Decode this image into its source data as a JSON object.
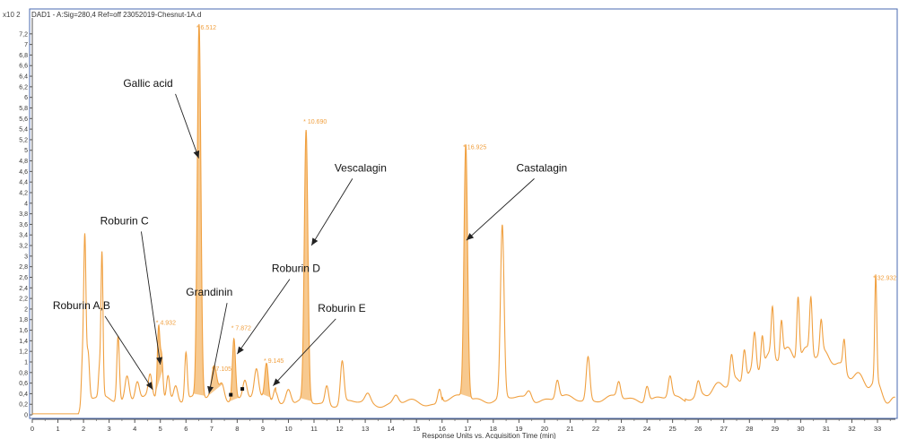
{
  "chart_data": {
    "type": "line",
    "title": "DAD1 - A:Sig=280,4  Ref=off 23052019-Chesnut-1A.d",
    "xlabel": "Response Units vs. Acquisition Time (min)",
    "ylabel": "",
    "y_scale_label": "x10 2",
    "xlim": [
      0,
      33.7
    ],
    "ylim": [
      -0.05,
      7.4
    ],
    "x_ticks": [
      "0",
      "1",
      "2",
      "3",
      "4",
      "5",
      "6",
      "7",
      "8",
      "9",
      "10",
      "11",
      "12",
      "13",
      "14",
      "15",
      "16",
      "17",
      "18",
      "19",
      "20",
      "21",
      "22",
      "23",
      "24",
      "25",
      "26",
      "27",
      "28",
      "29",
      "30",
      "31",
      "32",
      "33"
    ],
    "y_ticks": [
      "0",
      "0,2",
      "0,4",
      "0,6",
      "0,8",
      "1",
      "1,2",
      "1,4",
      "1,6",
      "1,8",
      "2",
      "2,2",
      "2,4",
      "2,6",
      "2,8",
      "3",
      "3,2",
      "3,4",
      "3,6",
      "3,8",
      "4",
      "4,2",
      "4,4",
      "4,6",
      "4,8",
      "5",
      "5,2",
      "5,4",
      "5,6",
      "5,8",
      "6",
      "6,2",
      "6,4",
      "6,6",
      "6,8",
      "7",
      "7,2"
    ],
    "line_color": "#f0a040",
    "fill_color": "#f7c98f",
    "baseline": 0.02,
    "peaks": [
      {
        "x": 1.95,
        "h": 0.65,
        "w": 0.04
      },
      {
        "x": 2.05,
        "h": 3.05,
        "w": 0.045
      },
      {
        "x": 2.18,
        "h": 0.85,
        "w": 0.05
      },
      {
        "x": 2.72,
        "h": 2.7,
        "w": 0.04
      },
      {
        "x": 2.62,
        "h": 0.5,
        "w": 0.04
      },
      {
        "x": 3.35,
        "h": 1.25,
        "w": 0.05
      },
      {
        "x": 3.7,
        "h": 0.45,
        "w": 0.08
      },
      {
        "x": 4.1,
        "h": 0.35,
        "w": 0.08
      },
      {
        "x": 4.6,
        "h": 0.4,
        "w": 0.07
      },
      {
        "x": 4.932,
        "h": 1.35,
        "w": 0.05
      },
      {
        "x": 5.05,
        "h": 0.8,
        "w": 0.05
      },
      {
        "x": 5.3,
        "h": 0.45,
        "w": 0.06
      },
      {
        "x": 5.6,
        "h": 0.3,
        "w": 0.08
      },
      {
        "x": 6.0,
        "h": 0.9,
        "w": 0.05
      },
      {
        "x": 6.512,
        "h": 7.05,
        "w": 0.07
      },
      {
        "x": 7.105,
        "h": 0.6,
        "w": 0.1
      },
      {
        "x": 7.4,
        "h": 0.35,
        "w": 0.1
      },
      {
        "x": 7.872,
        "h": 1.15,
        "w": 0.06
      },
      {
        "x": 8.3,
        "h": 0.35,
        "w": 0.08
      },
      {
        "x": 8.75,
        "h": 0.5,
        "w": 0.08
      },
      {
        "x": 9.145,
        "h": 0.7,
        "w": 0.07
      },
      {
        "x": 9.5,
        "h": 0.25,
        "w": 0.08
      },
      {
        "x": 10.0,
        "h": 0.3,
        "w": 0.1
      },
      {
        "x": 10.69,
        "h": 5.1,
        "w": 0.07
      },
      {
        "x": 11.5,
        "h": 0.35,
        "w": 0.07
      },
      {
        "x": 12.1,
        "h": 0.8,
        "w": 0.07
      },
      {
        "x": 13.1,
        "h": 0.15,
        "w": 0.1
      },
      {
        "x": 14.2,
        "h": 0.15,
        "w": 0.1
      },
      {
        "x": 15.9,
        "h": 0.3,
        "w": 0.07
      },
      {
        "x": 16.925,
        "h": 4.8,
        "w": 0.07
      },
      {
        "x": 18.35,
        "h": 3.25,
        "w": 0.07
      },
      {
        "x": 19.4,
        "h": 0.18,
        "w": 0.1
      },
      {
        "x": 20.5,
        "h": 0.35,
        "w": 0.07
      },
      {
        "x": 21.7,
        "h": 0.82,
        "w": 0.07
      },
      {
        "x": 22.9,
        "h": 0.3,
        "w": 0.07
      },
      {
        "x": 24.0,
        "h": 0.3,
        "w": 0.07
      },
      {
        "x": 24.9,
        "h": 0.4,
        "w": 0.07
      },
      {
        "x": 26.0,
        "h": 0.25,
        "w": 0.07
      },
      {
        "x": 27.3,
        "h": 0.5,
        "w": 0.06
      },
      {
        "x": 27.8,
        "h": 0.6,
        "w": 0.06
      },
      {
        "x": 28.2,
        "h": 0.7,
        "w": 0.06
      },
      {
        "x": 28.5,
        "h": 0.6,
        "w": 0.05
      },
      {
        "x": 28.9,
        "h": 0.9,
        "w": 0.05
      },
      {
        "x": 29.25,
        "h": 0.7,
        "w": 0.05
      },
      {
        "x": 29.9,
        "h": 1.2,
        "w": 0.05
      },
      {
        "x": 30.4,
        "h": 1.05,
        "w": 0.05
      },
      {
        "x": 30.8,
        "h": 0.6,
        "w": 0.05
      },
      {
        "x": 31.7,
        "h": 0.55,
        "w": 0.05
      },
      {
        "x": 32.932,
        "h": 2.0,
        "w": 0.04
      }
    ],
    "hump": {
      "center": 30.0,
      "height": 0.9,
      "width": 2.6,
      "start": 25.5
    },
    "shaded_peaks": [
      4.932,
      6.512,
      7.105,
      7.872,
      9.145,
      10.69,
      16.925
    ],
    "peak_labels": [
      {
        "x": 4.932,
        "y": 1.7,
        "text": "* 4.932"
      },
      {
        "x": 6.512,
        "y": 7.28,
        "text": "* 6.512"
      },
      {
        "x": 7.105,
        "y": 0.83,
        "text": "* 7.105"
      },
      {
        "x": 7.872,
        "y": 1.6,
        "text": "* 7.872"
      },
      {
        "x": 9.145,
        "y": 0.98,
        "text": "* 9.145"
      },
      {
        "x": 10.69,
        "y": 5.5,
        "text": "* 10.690"
      },
      {
        "x": 16.925,
        "y": 5.02,
        "text": "* 16.925"
      },
      {
        "x": 32.932,
        "y": 2.55,
        "text": "* 32.932"
      }
    ],
    "annotations": [
      {
        "text": "Gallic acid",
        "tx": 3.55,
        "ty": 6.2,
        "ax": 6.5,
        "ay": 4.85
      },
      {
        "text": "Vescalagin",
        "tx": 11.8,
        "ty": 4.6,
        "ax": 10.9,
        "ay": 3.2
      },
      {
        "text": "Castalagin",
        "tx": 18.9,
        "ty": 4.6,
        "ax": 16.95,
        "ay": 3.3
      },
      {
        "text": "Roburin C",
        "tx": 2.65,
        "ty": 3.6,
        "ax": 5.0,
        "ay": 0.95
      },
      {
        "text": "Roburin D",
        "tx": 9.35,
        "ty": 2.7,
        "ax": 8.0,
        "ay": 1.15
      },
      {
        "text": "Grandinin",
        "tx": 6.0,
        "ty": 2.25,
        "ax": 6.9,
        "ay": 0.4
      },
      {
        "text": "Roburin E",
        "tx": 11.15,
        "ty": 1.95,
        "ax": 9.4,
        "ay": 0.55
      },
      {
        "text": "Roburin A,B",
        "tx": 0.8,
        "ty": 2.0,
        "ax": 4.7,
        "ay": 0.48
      }
    ]
  }
}
